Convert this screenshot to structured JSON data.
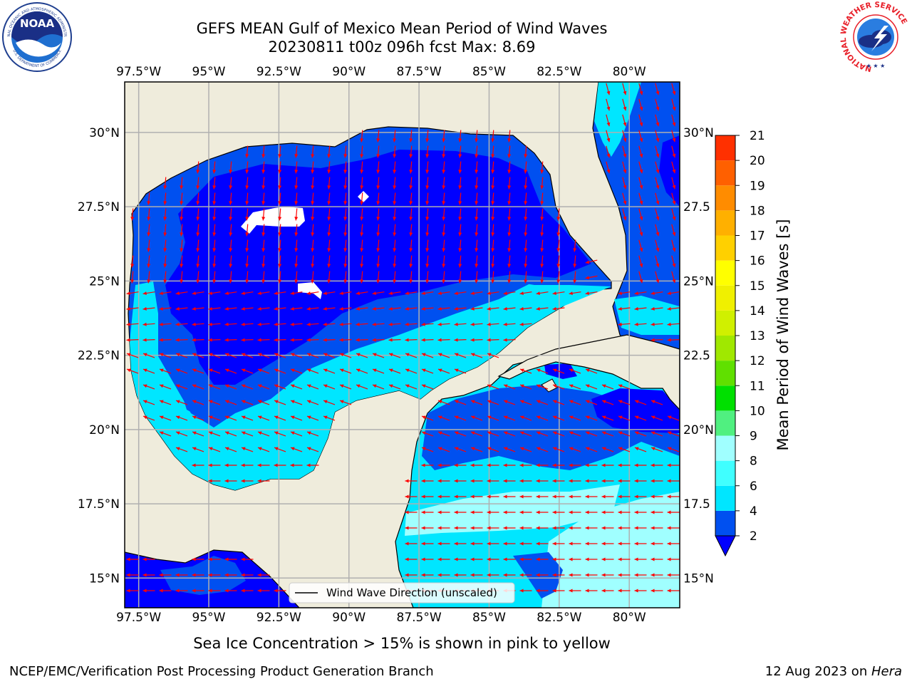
{
  "title_line1": "GEFS MEAN Gulf of Mexico Mean Period of Wind Waves",
  "title_line2": "20230811 t00z 096h fcst   Max: 8.69",
  "logos": {
    "noaa_text": "NOAA",
    "noaa_ring_top": "NATIONAL OCEANIC AND ATMOSPHERIC ADMINISTRATION",
    "noaa_ring_bottom": "U.S. DEPARTMENT OF COMMERCE",
    "nws_ring": "NATIONAL WEATHER SERVICE"
  },
  "map": {
    "lon_ticks": [
      "97.5°W",
      "95°W",
      "92.5°W",
      "90°W",
      "87.5°W",
      "85°W",
      "82.5°W",
      "80°W"
    ],
    "lon_values": [
      -97.5,
      -95,
      -92.5,
      -90,
      -87.5,
      -85,
      -82.5,
      -80
    ],
    "lat_ticks": [
      "30°N",
      "27.5°N",
      "25°N",
      "22.5°N",
      "20°N",
      "17.5°N",
      "15°N"
    ],
    "lat_ticks_right": [
      "30°N",
      "27.5",
      "25°N",
      "22.5",
      "20°N",
      "17.5",
      "15°N"
    ],
    "lat_values": [
      30,
      27.5,
      25,
      22.5,
      20,
      17.5,
      15
    ],
    "extent": {
      "lon_min": -98,
      "lon_max": -78.2,
      "lat_min": 14,
      "lat_max": 31.7
    },
    "colors": {
      "land": "#efecdc",
      "coast": "#000000",
      "grid": "#b0b0b0",
      "arrow": "#ff0000"
    },
    "legend_label": "Wind Wave Direction (unscaled)"
  },
  "colorbar": {
    "label": "Mean Period of Wind Waves [s]",
    "ticks": [
      "2",
      "4",
      "6",
      "8",
      "9",
      "10",
      "11",
      "12",
      "13",
      "14",
      "15",
      "16",
      "17",
      "18",
      "19",
      "20",
      "21"
    ],
    "colors": [
      "#0050f0",
      "#00e6ff",
      "#40ffff",
      "#a0ffff",
      "#50f080",
      "#00e000",
      "#60e000",
      "#a0e800",
      "#d0f000",
      "#f0f000",
      "#ffff00",
      "#ffd000",
      "#ffb000",
      "#ff8c00",
      "#ff6000",
      "#ff3000",
      "#ff0000"
    ],
    "extend_color": "#0000ff"
  },
  "note": "Sea Ice Concentration > 15% is shown in pink to yellow",
  "footer_left": "NCEP/EMC/Verification Post Processing Product Generation Branch",
  "footer_date": "12 Aug 2023 on ",
  "footer_host": "Hera"
}
